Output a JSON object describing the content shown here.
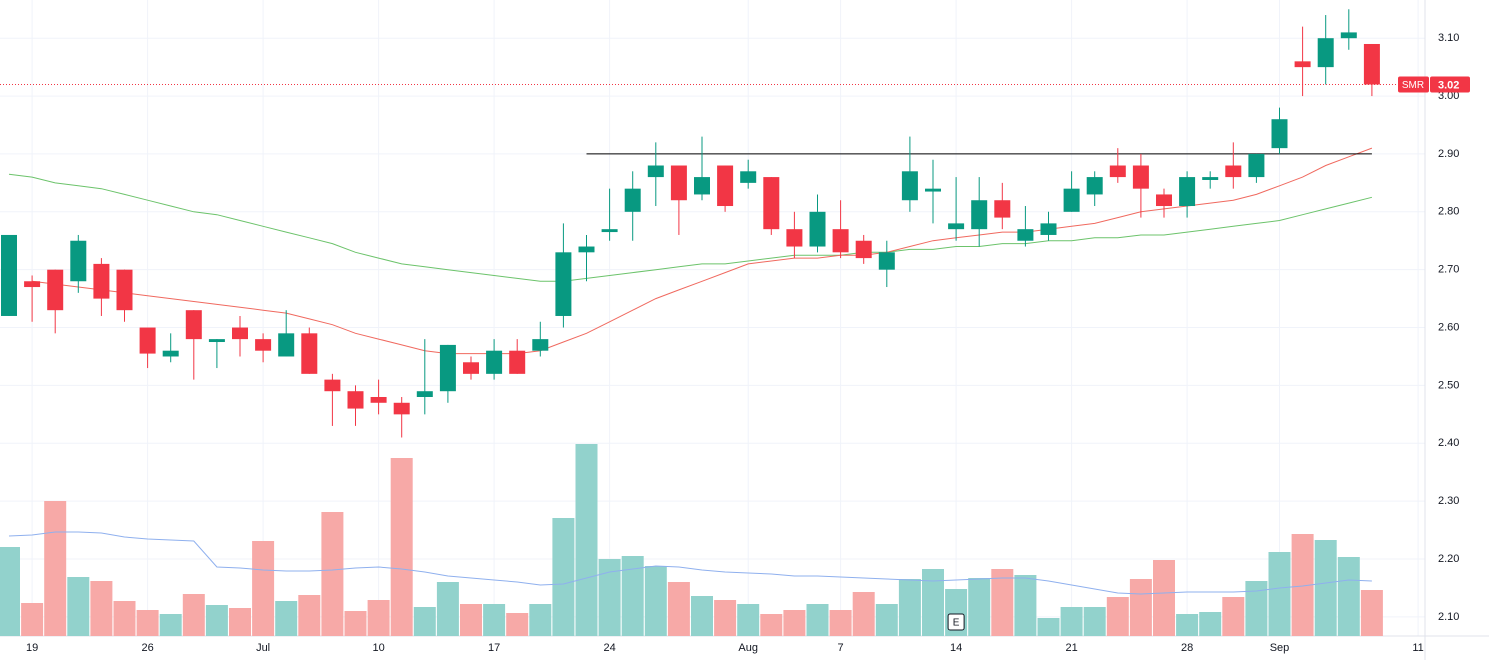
{
  "chart_data": {
    "type": "candlestick",
    "symbol": "SMR",
    "last_price": 3.02,
    "annotations": [
      "E"
    ],
    "categories": [
      null,
      "19",
      null,
      null,
      null,
      null,
      "26",
      null,
      null,
      null,
      null,
      "Jul",
      null,
      null,
      null,
      null,
      "10",
      null,
      null,
      null,
      null,
      "17",
      null,
      null,
      null,
      null,
      "24",
      null,
      null,
      null,
      null,
      null,
      "Aug",
      null,
      null,
      null,
      "7",
      null,
      null,
      null,
      null,
      "14",
      null,
      null,
      null,
      null,
      "21",
      null,
      null,
      null,
      null,
      "28",
      null,
      null,
      null,
      "Sep",
      null,
      null,
      null,
      null,
      null,
      "11"
    ],
    "open": [
      2.62,
      2.68,
      2.7,
      2.68,
      2.71,
      2.7,
      2.6,
      2.55,
      2.63,
      2.575,
      2.6,
      2.58,
      2.55,
      2.59,
      2.51,
      2.49,
      2.48,
      2.47,
      2.48,
      2.49,
      2.54,
      2.52,
      2.56,
      2.56,
      2.62,
      2.73,
      2.765,
      2.8,
      2.86,
      2.88,
      2.83,
      2.88,
      2.85,
      2.86,
      2.77,
      2.74,
      2.77,
      2.75,
      2.7,
      2.82,
      2.835,
      2.77,
      2.77,
      2.82,
      2.75,
      2.76,
      2.8,
      2.83,
      2.88,
      2.88,
      2.83,
      2.81,
      2.855,
      2.88,
      2.86,
      2.91,
      3.06,
      3.05,
      3.1,
      3.09,
      null,
      null
    ],
    "high": [
      2.76,
      2.69,
      2.7,
      2.76,
      2.72,
      2.7,
      2.6,
      2.59,
      2.63,
      2.58,
      2.62,
      2.59,
      2.63,
      2.6,
      2.52,
      2.5,
      2.51,
      2.48,
      2.58,
      2.57,
      2.55,
      2.58,
      2.58,
      2.61,
      2.78,
      2.76,
      2.84,
      2.87,
      2.92,
      2.88,
      2.93,
      2.88,
      2.89,
      2.86,
      2.8,
      2.83,
      2.82,
      2.76,
      2.75,
      2.93,
      2.89,
      2.86,
      2.86,
      2.85,
      2.81,
      2.8,
      2.87,
      2.87,
      2.91,
      2.9,
      2.84,
      2.87,
      2.87,
      2.92,
      2.9,
      2.98,
      3.12,
      3.14,
      3.15,
      3.09,
      null,
      null
    ],
    "low": [
      2.62,
      2.61,
      2.59,
      2.66,
      2.62,
      2.61,
      2.53,
      2.54,
      2.51,
      2.53,
      2.55,
      2.54,
      2.55,
      2.52,
      2.43,
      2.43,
      2.45,
      2.41,
      2.45,
      2.47,
      2.51,
      2.51,
      2.52,
      2.55,
      2.6,
      2.68,
      2.75,
      2.75,
      2.81,
      2.76,
      2.82,
      2.8,
      2.84,
      2.76,
      2.72,
      2.73,
      2.72,
      2.71,
      2.67,
      2.8,
      2.78,
      2.75,
      2.74,
      2.77,
      2.74,
      2.75,
      2.8,
      2.81,
      2.85,
      2.79,
      2.79,
      2.79,
      2.84,
      2.84,
      2.85,
      2.9,
      3.0,
      3.02,
      3.08,
      3.0,
      null,
      null
    ],
    "close": [
      2.76,
      2.67,
      2.63,
      2.75,
      2.65,
      2.63,
      2.555,
      2.56,
      2.58,
      2.58,
      2.58,
      2.56,
      2.59,
      2.52,
      2.49,
      2.46,
      2.47,
      2.45,
      2.49,
      2.57,
      2.52,
      2.56,
      2.52,
      2.58,
      2.73,
      2.74,
      2.77,
      2.84,
      2.88,
      2.82,
      2.86,
      2.81,
      2.87,
      2.77,
      2.74,
      2.8,
      2.73,
      2.72,
      2.73,
      2.87,
      2.84,
      2.78,
      2.82,
      2.79,
      2.77,
      2.78,
      2.84,
      2.86,
      2.86,
      2.84,
      2.81,
      2.86,
      2.86,
      2.86,
      2.9,
      2.96,
      3.05,
      3.1,
      3.11,
      3.02,
      null,
      null
    ],
    "volume": [
      89,
      33,
      135,
      59,
      55,
      35,
      26,
      22,
      42,
      31,
      28,
      95,
      35,
      41,
      124,
      25,
      36,
      178,
      29,
      54,
      32,
      32,
      23,
      32,
      118,
      192,
      77,
      80,
      70,
      54,
      40,
      36,
      32,
      22,
      26,
      32,
      26,
      44,
      32,
      57,
      67,
      47,
      58,
      67,
      61,
      18,
      29,
      29,
      39,
      57,
      76,
      22,
      24,
      39,
      55,
      84,
      102,
      96,
      79,
      46,
      null,
      null
    ],
    "ma_fast": [
      null,
      2.68,
      2.675,
      2.67,
      2.665,
      2.66,
      2.655,
      2.65,
      2.645,
      2.64,
      2.635,
      2.63,
      2.625,
      2.615,
      2.605,
      2.59,
      2.58,
      2.57,
      2.56,
      2.555,
      2.555,
      2.555,
      2.555,
      2.56,
      2.575,
      2.59,
      2.61,
      2.63,
      2.65,
      2.665,
      2.68,
      2.695,
      2.71,
      2.715,
      2.72,
      2.72,
      2.725,
      2.725,
      2.73,
      2.74,
      2.75,
      2.755,
      2.76,
      2.765,
      2.765,
      2.77,
      2.775,
      2.78,
      2.79,
      2.8,
      2.805,
      2.81,
      2.815,
      2.82,
      2.83,
      2.845,
      2.86,
      2.88,
      2.895,
      2.91,
      null,
      null
    ],
    "ma_slow": [
      2.865,
      2.86,
      2.85,
      2.845,
      2.84,
      2.83,
      2.82,
      2.81,
      2.8,
      2.795,
      2.785,
      2.775,
      2.765,
      2.755,
      2.745,
      2.73,
      2.72,
      2.71,
      2.705,
      2.7,
      2.695,
      2.69,
      2.685,
      2.68,
      2.68,
      2.685,
      2.69,
      2.695,
      2.7,
      2.705,
      2.71,
      2.71,
      2.715,
      2.72,
      2.725,
      2.725,
      2.725,
      2.73,
      2.73,
      2.735,
      2.735,
      2.74,
      2.74,
      2.745,
      2.745,
      2.75,
      2.75,
      2.755,
      2.755,
      2.76,
      2.76,
      2.765,
      2.77,
      2.775,
      2.78,
      2.785,
      2.795,
      2.805,
      2.815,
      2.825,
      null,
      null
    ],
    "volume_ma": [
      100,
      101,
      104,
      104,
      103,
      99,
      97,
      96,
      95,
      69,
      68,
      66,
      65,
      65,
      66,
      68,
      69,
      67,
      64,
      60,
      58,
      56,
      54,
      51,
      52,
      58,
      64,
      67,
      70,
      69,
      66,
      64,
      63,
      62,
      60,
      60,
      59,
      58,
      57,
      56,
      55,
      56,
      57,
      58,
      58,
      55,
      51,
      47,
      43,
      42,
      43,
      44,
      44,
      44,
      45,
      48,
      50,
      53,
      56,
      55,
      null,
      null
    ],
    "hline": 2.9,
    "up_color": "#089981",
    "down_color": "#f23645",
    "up_volume_color": "#92d2cc",
    "down_volume_color": "#f7a9a7",
    "ma_fast_color": "#f0695f",
    "ma_slow_color": "#6cc36b",
    "volume_ma_color": "#8fb0ee",
    "ylim": [
      2.067,
      3.166
    ],
    "yticks": [
      {
        "value": 2.1,
        "label": "2.10"
      },
      {
        "value": 2.2,
        "label": "2.20"
      },
      {
        "value": 2.3,
        "label": "2.30"
      },
      {
        "value": 2.4,
        "label": "2.40"
      },
      {
        "value": 2.5,
        "label": "2.50"
      },
      {
        "value": 2.6,
        "label": "2.60"
      },
      {
        "value": 2.7,
        "label": "2.70"
      },
      {
        "value": 2.8,
        "label": "2.80"
      },
      {
        "value": 2.9,
        "label": "2.90"
      },
      {
        "value": 3,
        "label": "3.00"
      },
      {
        "value": 3.1,
        "label": "3.10"
      }
    ],
    "volume_ylim": [
      0,
      200
    ],
    "grid": true
  }
}
